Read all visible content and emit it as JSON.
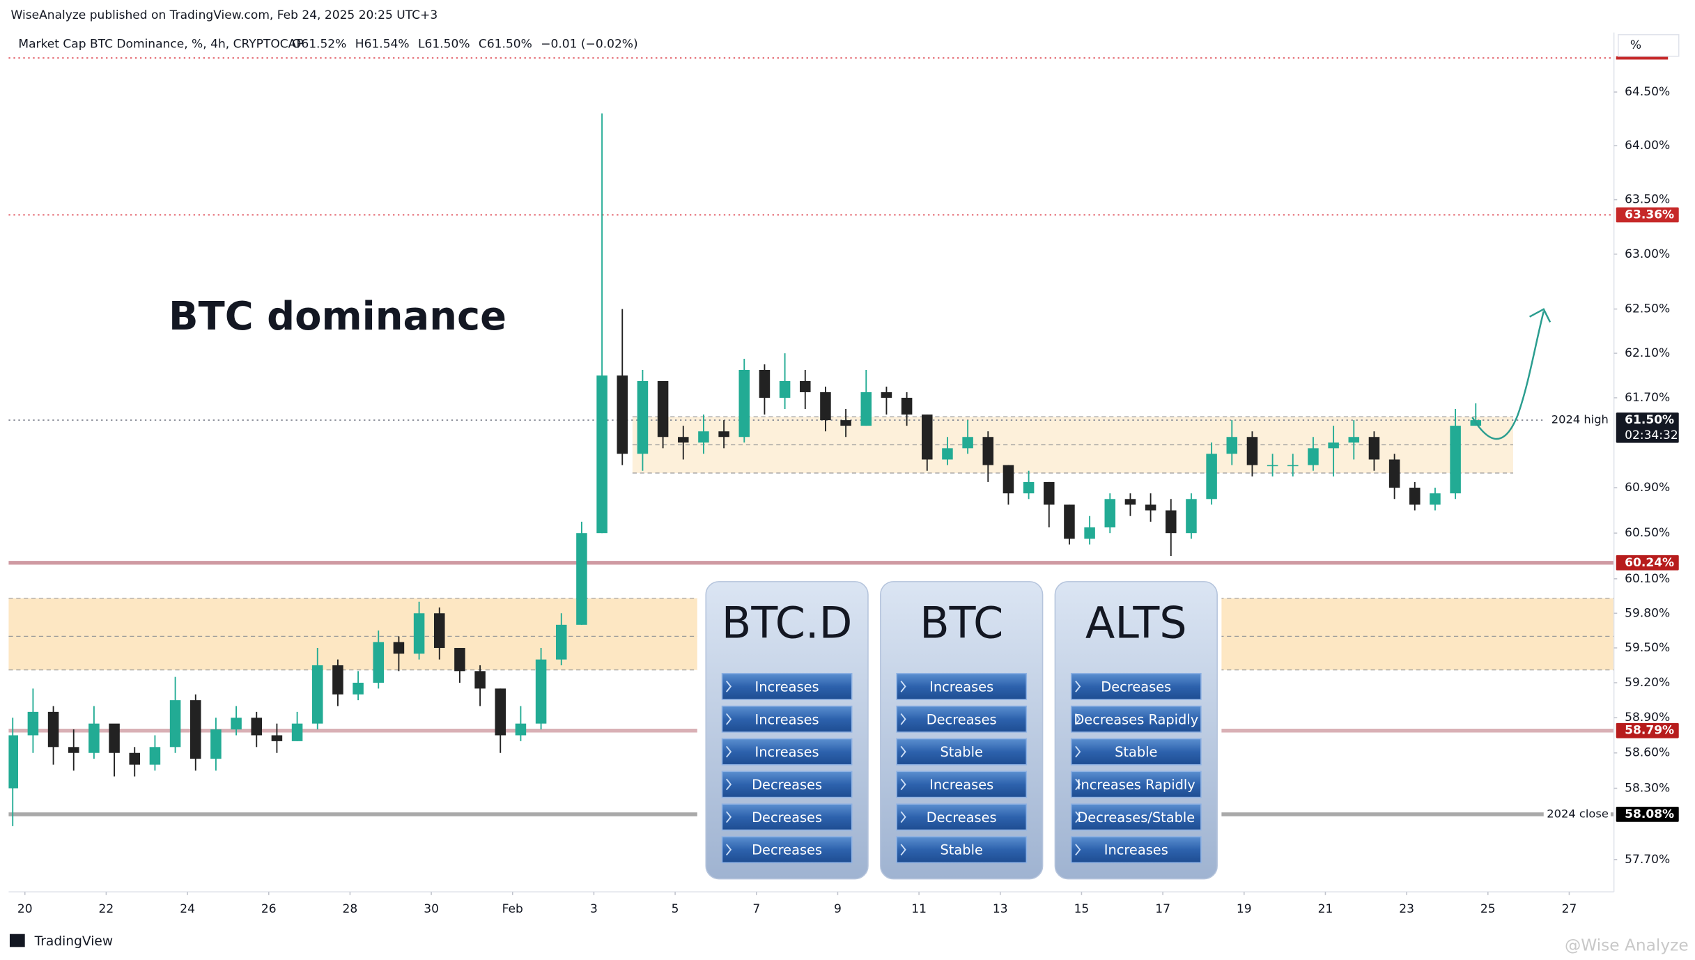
{
  "header": {
    "publisher": "WiseAnalyze published on TradingView.com, Feb 24, 2025 20:25 UTC+3",
    "brand": "TradingView",
    "watermark": "@Wise Analyze"
  },
  "chart_data": {
    "type": "candlestick",
    "title": "BTC dominance",
    "symbol": "Market Cap BTC Dominance, %, 4h, CRYPTOCAP",
    "ohlc": [
      "O61.52%",
      "H61.54%",
      "L61.50%",
      "C61.50%",
      "−0.01 (−0.02%)"
    ],
    "unit": "%",
    "log_scale": true,
    "up_color": "#22ab94",
    "down_color": "#222222",
    "x": [
      19.7,
      20.2,
      20.7,
      21.2,
      21.7,
      22.2,
      22.7,
      23.2,
      23.7,
      24.2,
      24.7,
      25.2,
      25.7,
      26.2,
      26.7,
      27.2,
      27.7,
      28.2,
      28.7,
      29.2,
      29.7,
      30.2,
      30.7,
      31.2,
      31.7,
      32.2,
      32.7,
      33.2,
      33.7,
      34.2,
      34.7,
      35.2,
      35.7,
      36.2,
      36.7,
      37.2,
      37.7,
      38.2,
      38.7,
      39.2,
      39.7,
      40.2,
      40.7,
      41.2,
      41.7,
      42.2,
      42.7,
      43.2,
      43.7,
      44.2,
      44.7,
      45.2,
      45.7,
      46.2,
      46.7,
      47.2,
      47.7,
      48.2,
      48.7,
      49.2,
      49.7,
      50.2,
      50.7,
      51.2,
      51.7,
      52.2,
      52.7,
      53.2,
      53.7,
      54.2,
      54.7,
      55.2,
      55.7
    ],
    "open": [
      58.3,
      58.75,
      58.95,
      58.65,
      58.6,
      58.85,
      58.6,
      58.5,
      58.65,
      59.05,
      58.55,
      58.8,
      58.9,
      58.75,
      58.7,
      58.85,
      59.35,
      59.1,
      59.2,
      59.55,
      59.45,
      59.8,
      59.5,
      59.3,
      59.15,
      58.75,
      58.85,
      59.4,
      59.7,
      60.5,
      61.9,
      61.2,
      61.85,
      61.35,
      61.3,
      61.4,
      61.35,
      61.95,
      61.7,
      61.85,
      61.75,
      61.5,
      61.45,
      61.75,
      61.7,
      61.55,
      61.15,
      61.25,
      61.35,
      61.1,
      60.85,
      60.95,
      60.75,
      60.45,
      60.55,
      60.8,
      60.75,
      60.7,
      60.5,
      60.8,
      61.2,
      61.35,
      61.1,
      61.1,
      61.1,
      61.25,
      61.3,
      61.35,
      61.15,
      60.9,
      60.75,
      60.85,
      61.45
    ],
    "high": [
      58.9,
      59.15,
      59.0,
      58.8,
      59.0,
      58.8,
      58.65,
      58.75,
      59.25,
      59.1,
      58.9,
      59.0,
      58.95,
      58.85,
      58.95,
      59.5,
      59.4,
      59.3,
      59.65,
      59.6,
      59.9,
      59.85,
      59.5,
      59.35,
      59.15,
      59.0,
      59.5,
      59.8,
      60.6,
      64.3,
      62.5,
      61.95,
      61.8,
      61.45,
      61.55,
      61.5,
      62.05,
      62.0,
      62.1,
      61.95,
      61.8,
      61.6,
      61.95,
      61.8,
      61.75,
      61.55,
      61.35,
      61.5,
      61.4,
      61.1,
      61.05,
      60.95,
      60.75,
      60.65,
      60.85,
      60.85,
      60.85,
      60.8,
      60.85,
      61.3,
      61.5,
      61.4,
      61.2,
      61.2,
      61.35,
      61.45,
      61.5,
      61.4,
      61.2,
      60.95,
      60.9,
      61.6,
      61.65
    ],
    "low": [
      57.98,
      58.6,
      58.5,
      58.45,
      58.55,
      58.4,
      58.4,
      58.45,
      58.6,
      58.45,
      58.45,
      58.75,
      58.65,
      58.6,
      58.7,
      58.8,
      59.0,
      59.05,
      59.15,
      59.3,
      59.4,
      59.4,
      59.2,
      59.0,
      58.6,
      58.7,
      58.8,
      59.35,
      59.7,
      60.5,
      61.1,
      61.05,
      61.25,
      61.15,
      61.2,
      61.25,
      61.3,
      61.55,
      61.6,
      61.6,
      61.4,
      61.35,
      61.45,
      61.55,
      61.45,
      61.05,
      61.1,
      61.2,
      60.95,
      60.75,
      60.8,
      60.55,
      60.4,
      60.4,
      60.5,
      60.65,
      60.6,
      60.3,
      60.45,
      60.75,
      61.1,
      61.0,
      61.0,
      61.0,
      61.05,
      61.0,
      61.15,
      61.05,
      60.8,
      60.7,
      60.7,
      60.8,
      61.45
    ],
    "close": [
      58.75,
      58.95,
      58.65,
      58.6,
      58.85,
      58.6,
      58.5,
      58.65,
      59.05,
      58.55,
      58.8,
      58.9,
      58.75,
      58.7,
      58.85,
      59.35,
      59.1,
      59.2,
      59.55,
      59.45,
      59.8,
      59.5,
      59.3,
      59.15,
      58.75,
      58.85,
      59.4,
      59.7,
      60.5,
      61.9,
      61.2,
      61.85,
      61.35,
      61.3,
      61.4,
      61.35,
      61.95,
      61.7,
      61.85,
      61.75,
      61.5,
      61.45,
      61.75,
      61.7,
      61.55,
      61.15,
      61.25,
      61.35,
      61.1,
      60.85,
      60.95,
      60.75,
      60.45,
      60.55,
      60.8,
      60.75,
      60.7,
      60.5,
      60.8,
      61.2,
      61.35,
      61.1,
      61.1,
      61.1,
      61.25,
      61.3,
      61.35,
      61.15,
      60.9,
      60.75,
      60.85,
      61.45,
      61.5
    ],
    "xlim": [
      19.6,
      59.1
    ],
    "xticks": [
      20,
      22,
      24,
      26,
      28,
      30,
      {
        "value": 32,
        "label": "Feb"
      },
      {
        "value": 34,
        "label": "3"
      },
      {
        "value": 36,
        "label": "5"
      },
      {
        "value": 38,
        "label": "7"
      },
      {
        "value": 40,
        "label": "9"
      },
      {
        "value": 42,
        "label": "11"
      },
      {
        "value": 44,
        "label": "13"
      },
      {
        "value": 46,
        "label": "15"
      },
      {
        "value": 48,
        "label": "17"
      },
      {
        "value": 50,
        "label": "19"
      },
      {
        "value": 52,
        "label": "21"
      },
      {
        "value": 54,
        "label": "23"
      },
      {
        "value": 56,
        "label": "25"
      },
      {
        "value": 58,
        "label": "27"
      }
    ],
    "ylim": [
      57.43,
      65.06
    ],
    "yticks": [
      {
        "value": 64.5,
        "label": "64.50%"
      },
      {
        "value": 64.0,
        "label": "64.00%"
      },
      {
        "value": 63.5,
        "label": "63.50%"
      },
      {
        "value": 63.0,
        "label": "63.00%"
      },
      {
        "value": 62.5,
        "label": "62.50%"
      },
      {
        "value": 62.1,
        "label": "62.10%"
      },
      {
        "value": 61.7,
        "label": "61.70%"
      },
      {
        "value": 60.9,
        "label": "60.90%"
      },
      {
        "value": 60.5,
        "label": "60.50%"
      },
      {
        "value": 60.1,
        "label": "60.10%"
      },
      {
        "value": 59.8,
        "label": "59.80%"
      },
      {
        "value": 59.5,
        "label": "59.50%"
      },
      {
        "value": 59.2,
        "label": "59.20%"
      },
      {
        "value": 58.9,
        "label": "58.90%"
      },
      {
        "value": 58.6,
        "label": "58.60%"
      },
      {
        "value": 58.3,
        "label": "58.30%"
      },
      {
        "value": 57.7,
        "label": "57.70%"
      }
    ],
    "levels": [
      {
        "value": 64.82,
        "color": "#e0525c",
        "style": "dotted",
        "label_color": "#c62828"
      },
      {
        "value": 63.36,
        "label": "63.36%",
        "color": "#e0525c",
        "style": "dotted",
        "label_color": "#c62828"
      },
      {
        "value": 61.5,
        "label": "61.50%",
        "countdown": "02:34:32",
        "annotation": "2024 high",
        "color": "#8a8e99",
        "style": "dotted",
        "label_color": "#131722"
      },
      {
        "value": 60.24,
        "label": "60.24%",
        "color": "#cf9aa2",
        "style": "solid",
        "label_color": "#b71c1c"
      },
      {
        "value": 58.79,
        "label": "58.79%",
        "color": "#d9b0b5",
        "style": "solid",
        "label_color": "#b71c1c"
      },
      {
        "value": 58.08,
        "label": "58.08%",
        "annotation": "2024 close",
        "color": "#a9a9a9",
        "style": "solid",
        "label_color": "#000000"
      }
    ],
    "zones": [
      {
        "xlim": [
          19.6,
          59.1
        ],
        "ylim": [
          59.31,
          59.93
        ],
        "mid": 59.6,
        "color": "#fde7c3"
      },
      {
        "xlim": [
          34.95,
          56.62
        ],
        "ylim": [
          61.03,
          61.53
        ],
        "mid": 61.28,
        "color": "#fdf0da"
      }
    ]
  },
  "table": {
    "columns": [
      {
        "header": "BTC.D",
        "rows": [
          "Increases",
          "Increases",
          "Increases",
          "Decreases",
          "Decreases",
          "Decreases"
        ]
      },
      {
        "header": "BTC",
        "rows": [
          "Increases",
          "Decreases",
          "Stable",
          "Increases",
          "Decreases",
          "Stable"
        ]
      },
      {
        "header": "ALTS",
        "rows": [
          "Decreases",
          "Decreases Rapidly",
          "Stable",
          "Increases Rapidly",
          "Decreases/Stable",
          "Increases"
        ]
      }
    ]
  }
}
